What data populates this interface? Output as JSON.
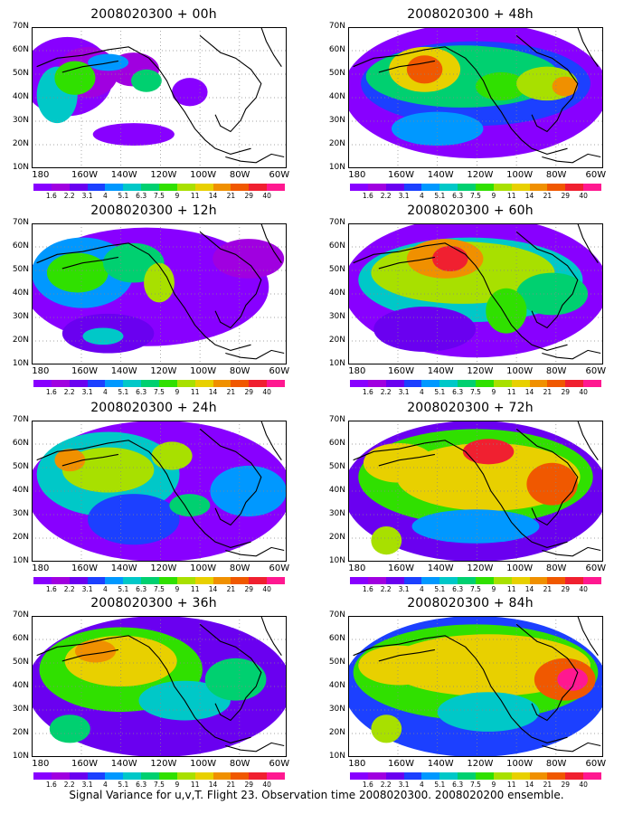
{
  "caption": "Signal Variance for u,v,T. Flight 23. Observation time 2008020300. 2008020200 ensemble.",
  "lat_labels": [
    "70N",
    "60N",
    "50N",
    "40N",
    "30N",
    "20N",
    "10N"
  ],
  "lon_labels": [
    "180",
    "160W",
    "140W",
    "120W",
    "100W",
    "80W",
    "60W"
  ],
  "colorbar": {
    "labels": [
      "1.6",
      "2.2",
      "3.1",
      "4",
      "5.1",
      "6.3",
      "7.5",
      "9",
      "11",
      "14",
      "21",
      "29",
      "40"
    ],
    "colors": [
      "#8800ff",
      "#a000e0",
      "#6a00f0",
      "#1c40ff",
      "#0098ff",
      "#00c8c8",
      "#00d070",
      "#30e000",
      "#a8e000",
      "#e8d000",
      "#f09000",
      "#f05800",
      "#f02030",
      "#ff1890"
    ]
  },
  "panels": [
    {
      "title": "2008020300 + 00h"
    },
    {
      "title": "2008020300 + 48h"
    },
    {
      "title": "2008020300 + 12h"
    },
    {
      "title": "2008020300 + 60h"
    },
    {
      "title": "2008020300 + 24h"
    },
    {
      "title": "2008020300 + 72h"
    },
    {
      "title": "2008020300 + 36h"
    },
    {
      "title": "2008020300 + 84h"
    }
  ]
}
